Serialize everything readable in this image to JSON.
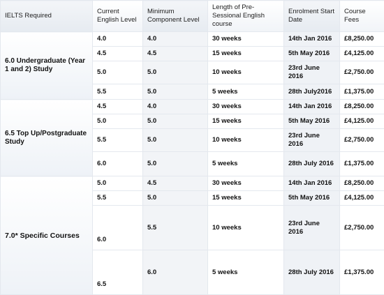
{
  "headers": {
    "ielts_required": "IELTS Required",
    "current_level": "Current English Level",
    "min_component": "Minimum Component Level",
    "length": "Length of Pre-Sessional English course",
    "start_date": "Enrolment Start Date",
    "fees": "Course Fees"
  },
  "groups": [
    {
      "requirement": "6.0 Undergraduate (Year 1 and 2) Study",
      "rows": [
        {
          "current": "4.0",
          "minimum": "4.0",
          "length": "30 weeks",
          "date": "14th Jan 2016",
          "fee": "£8,250.00"
        },
        {
          "current": "4.5",
          "minimum": "4.5",
          "length": "15 weeks",
          "date": "5th May 2016",
          "fee": "£4,125.00"
        },
        {
          "current": "5.0",
          "minimum": "5.0",
          "length": "10 weeks",
          "date": "23rd June 2016",
          "fee": "£2,750.00"
        },
        {
          "current": "5.5",
          "minimum": "5.0",
          "length": "5 weeks",
          "date": "28th July2016",
          "fee": "£1,375.00"
        }
      ]
    },
    {
      "requirement": "6.5 Top Up/Postgraduate Study",
      "rows": [
        {
          "current": "4.5",
          "minimum": "4.0",
          "length": "30 weeks",
          "date": "14th Jan 2016",
          "fee": "£8,250.00"
        },
        {
          "current": "5.0",
          "minimum": "5.0",
          "length": "15 weeks",
          "date": "5th May 2016",
          "fee": "£4,125.00"
        },
        {
          "current": "5.5",
          "minimum": "5.0",
          "length": "10 weeks",
          "date": "23rd June 2016",
          "fee": "£2,750.00"
        },
        {
          "current": "6.0",
          "minimum": "5.0",
          "length": "5 weeks",
          "date": "28th July 2016",
          "fee": "£1,375.00"
        }
      ]
    },
    {
      "requirement": "7.0* Specific Courses",
      "rows": [
        {
          "current": "5.0",
          "minimum": "4.5",
          "length": "30 weeks",
          "date": "14th Jan 2016",
          "fee": "£8,250.00"
        },
        {
          "current": "5.5",
          "minimum": "5.0",
          "length": "15 weeks",
          "date": "5th May 2016",
          "fee": "£4,125.00"
        },
        {
          "current": "6.0",
          "minimum": "5.5",
          "length": "10 weeks",
          "date": "23rd June 2016",
          "fee": "£2,750.00"
        },
        {
          "current": "6.5",
          "minimum": "6.0",
          "length": "5 weeks",
          "date": "28th July 2016",
          "fee": "£1,375.00"
        }
      ]
    }
  ]
}
